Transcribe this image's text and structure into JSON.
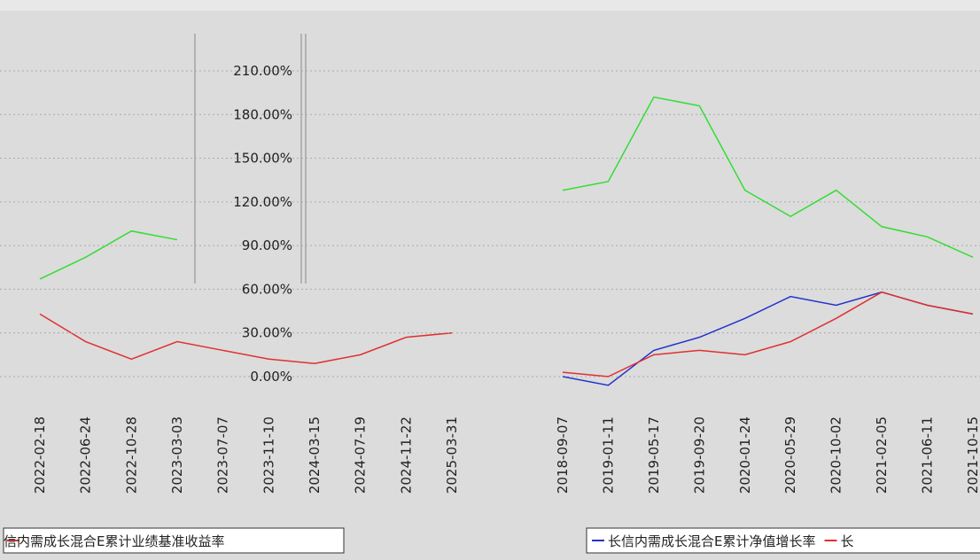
{
  "chart_data": [
    {
      "type": "line",
      "categories": [
        "2022-02-18",
        "2022-06-24",
        "2022-10-28",
        "2023-03-03",
        "2023-07-07",
        "2023-11-10",
        "2024-03-15",
        "2024-07-19",
        "2024-11-22",
        "2025-03-31"
      ],
      "series": [
        {
          "name": "信内需成长混合E累计业绩基准收益率",
          "color": "#e03030",
          "values": [
            43,
            24,
            12,
            24,
            18,
            12,
            9,
            15,
            27,
            30
          ]
        },
        {
          "color": "#33dd33",
          "values": [
            67,
            82,
            100,
            94,
            null,
            null,
            null,
            null,
            null,
            null
          ]
        }
      ],
      "ylim": [
        0,
        210
      ]
    },
    {
      "type": "line",
      "categories": [
        "2018-09-07",
        "2019-01-11",
        "2019-05-17",
        "2019-09-20",
        "2020-01-24",
        "2020-05-29",
        "2020-10-02",
        "2021-02-05",
        "2021-06-11",
        "2021-10-15"
      ],
      "series": [
        {
          "name": "长信内需成长混合E累计净值增长率",
          "color": "#2233cc",
          "values": [
            0,
            -6,
            18,
            27,
            40,
            55,
            49,
            58,
            49,
            43
          ]
        },
        {
          "name": "长",
          "color": "#e03030",
          "values": [
            3,
            0,
            15,
            18,
            15,
            24,
            40,
            58,
            49,
            43
          ]
        },
        {
          "color": "#33dd33",
          "values": [
            128,
            134,
            192,
            186,
            128,
            110,
            128,
            103,
            96,
            82
          ]
        }
      ],
      "ylim": [
        0,
        210
      ],
      "yticks": [
        {
          "value": 0,
          "label": "0.00%"
        },
        {
          "value": 30,
          "label": "30.00%"
        },
        {
          "value": 60,
          "label": "60.00%"
        },
        {
          "value": 90,
          "label": "90.00%"
        },
        {
          "value": 120,
          "label": "120.00%"
        },
        {
          "value": 150,
          "label": "150.00%"
        },
        {
          "value": 180,
          "label": "180.00%"
        },
        {
          "value": 210,
          "label": "210.00%"
        }
      ],
      "grid": true
    }
  ]
}
